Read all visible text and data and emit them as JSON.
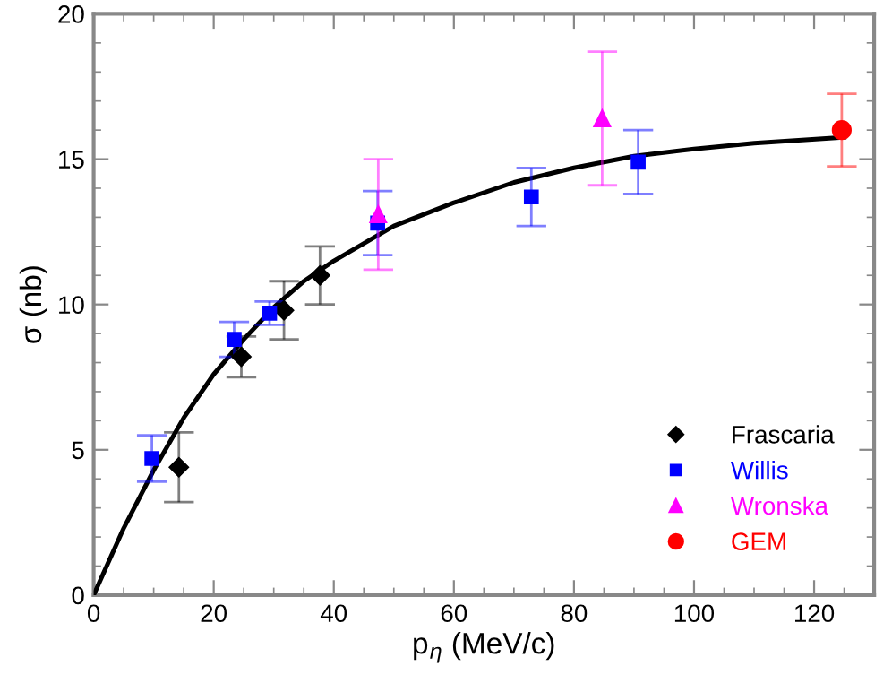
{
  "chart_data": {
    "type": "scatter",
    "xlabel": "p$_{η}$ (MeV/c)",
    "ylabel": "σ (nb)",
    "xlim": [
      0,
      130
    ],
    "ylim": [
      0,
      20
    ],
    "xticks": [
      0,
      20,
      40,
      60,
      80,
      100,
      120
    ],
    "yticks": [
      0,
      5,
      10,
      15,
      20
    ],
    "grid": false,
    "legend": "bottom right",
    "series": [
      {
        "name": "Frascaria",
        "color": "#000000",
        "marker": "diamond",
        "x": [
          14.2,
          24.6,
          31.7,
          37.7
        ],
        "values": [
          4.4,
          8.2,
          9.8,
          11.0
        ],
        "errors": [
          1.2,
          0.7,
          1.0,
          1.0
        ]
      },
      {
        "name": "Willis",
        "color": "#0000ff",
        "marker": "square",
        "x": [
          9.7,
          23.4,
          29.3,
          47.3,
          72.9,
          90.7
        ],
        "values": [
          4.7,
          8.8,
          9.7,
          12.8,
          13.7,
          14.9
        ],
        "errors": [
          0.8,
          0.6,
          0.4,
          1.1,
          1.0,
          1.1
        ]
      },
      {
        "name": "Wronska",
        "color": "#ff00ff",
        "marker": "triangle",
        "x": [
          47.4,
          84.7
        ],
        "values": [
          13.1,
          16.4
        ],
        "errors": [
          1.9,
          [
            14.1,
            18.7
          ]
        ]
      },
      {
        "name": "GEM",
        "color": "#ff0000",
        "marker": "circle",
        "x": [
          124.6
        ],
        "values": [
          16.0
        ],
        "errors": [
          1.25
        ]
      },
      {
        "type": "line",
        "color": "#000000",
        "x": [
          0,
          5,
          10,
          15,
          20,
          25,
          30,
          35,
          40,
          50,
          60,
          70,
          80,
          90,
          100,
          110,
          125
        ],
        "values": [
          0,
          2.3,
          4.3,
          6.1,
          7.6,
          8.8,
          9.9,
          10.8,
          11.5,
          12.7,
          13.5,
          14.2,
          14.7,
          15.1,
          15.35,
          15.55,
          15.75
        ]
      }
    ]
  }
}
